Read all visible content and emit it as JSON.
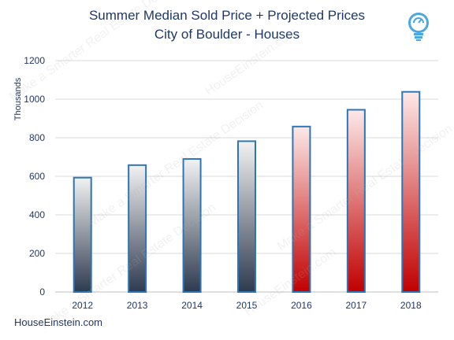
{
  "title_line1": "Summer Median Sold Price + Projected Prices",
  "title_line2": "City of Boulder - Houses",
  "footer": "HouseEinstein.com",
  "watermark": "Make a Smarter Real Estate Decision",
  "watermark_site": "HouseEinstein.com",
  "logo_icon": "lightbulb-icon",
  "colors": {
    "title": "#1f3864",
    "actual_bar_top": "#f2f2f2",
    "actual_bar_bottom": "#2e3a4f",
    "projected_bar_top": "#fde9e9",
    "projected_bar_bottom": "#c00000",
    "bar_border": "#2e75b6"
  },
  "chart_data": {
    "type": "bar",
    "ylabel": "Thousands",
    "categories": [
      "2012",
      "2013",
      "2014",
      "2015",
      "2016",
      "2017",
      "2018"
    ],
    "values": [
      593,
      658,
      690,
      782,
      858,
      945,
      1038
    ],
    "projected": [
      false,
      false,
      false,
      false,
      true,
      true,
      true
    ],
    "ylim": [
      0,
      1200
    ],
    "yticks": [
      0,
      200,
      400,
      600,
      800,
      1000,
      1200
    ],
    "grid": true
  }
}
